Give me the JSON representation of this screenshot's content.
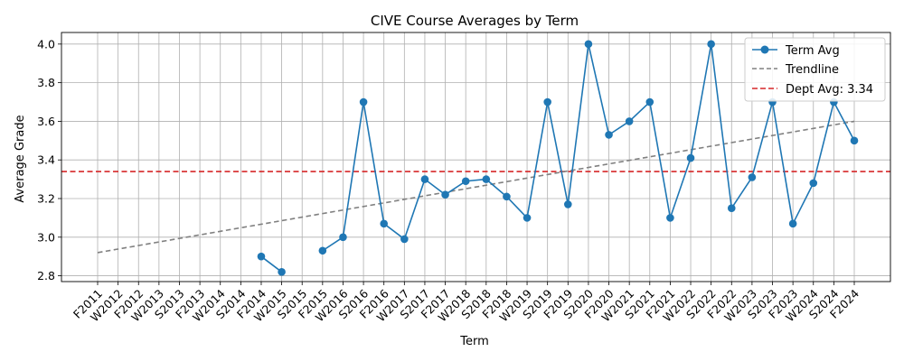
{
  "chart_data": {
    "type": "line",
    "title": "CIVE Course Averages by Term",
    "xlabel": "Term",
    "ylabel": "Average Grade",
    "ylim": [
      2.77,
      4.06
    ],
    "yticks": [
      "2.8",
      "3.0",
      "3.2",
      "3.4",
      "3.6",
      "3.8",
      "4.0"
    ],
    "grid": true,
    "legend_position": "top-right",
    "categories": [
      "F2011",
      "W2012",
      "F2012",
      "W2013",
      "S2013",
      "F2013",
      "W2014",
      "S2014",
      "F2014",
      "W2015",
      "S2015",
      "F2015",
      "W2016",
      "S2016",
      "F2016",
      "W2017",
      "S2017",
      "F2017",
      "W2018",
      "S2018",
      "F2018",
      "W2019",
      "S2019",
      "F2019",
      "S2020",
      "F2020",
      "W2021",
      "S2021",
      "F2021",
      "W2022",
      "S2022",
      "F2022",
      "W2023",
      "S2023",
      "F2023",
      "W2024",
      "S2024",
      "F2024"
    ],
    "series": [
      {
        "name": "Term Avg",
        "color": "#1f77b4",
        "values": [
          null,
          null,
          null,
          null,
          null,
          null,
          null,
          null,
          2.9,
          2.82,
          null,
          2.93,
          3.0,
          3.7,
          3.07,
          2.99,
          3.3,
          3.22,
          3.29,
          3.3,
          3.21,
          3.1,
          3.7,
          3.17,
          4.0,
          3.53,
          3.6,
          3.7,
          3.1,
          3.41,
          4.0,
          3.15,
          3.31,
          3.7,
          3.07,
          3.28,
          3.7,
          3.5
        ]
      }
    ],
    "trendline": {
      "name": "Trendline",
      "color": "#808080",
      "start": 2.92,
      "end": 3.6
    },
    "reference_line": {
      "name": "Dept Avg: 3.34",
      "value": 3.34,
      "color": "#d62728"
    }
  }
}
